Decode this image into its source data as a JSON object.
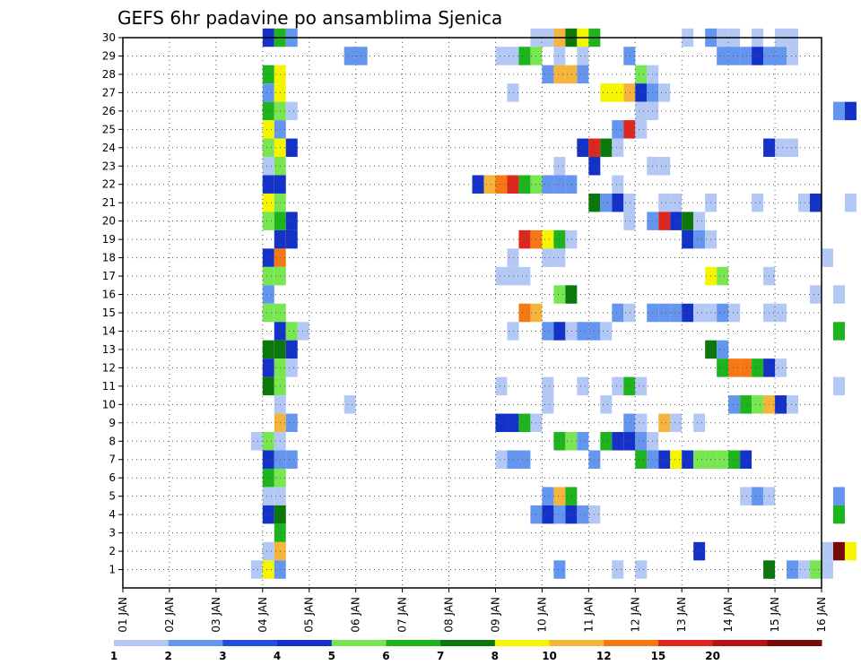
{
  "chart_data": {
    "type": "heatmap",
    "title": "GEFS 6hr padavine po ansamblima Sjenica",
    "x_tick_labels": [
      "01 JAN",
      "02 JAN",
      "03 JAN",
      "04 JAN",
      "05 JAN",
      "06 JAN",
      "07 JAN",
      "08 JAN",
      "09 JAN",
      "10 JAN",
      "11 JAN",
      "12 JAN",
      "13 JAN",
      "14 JAN",
      "15 JAN",
      "16 JAN"
    ],
    "y_tick_labels": [
      "1",
      "2",
      "3",
      "4",
      "5",
      "6",
      "7",
      "8",
      "9",
      "10",
      "11",
      "12",
      "13",
      "14",
      "15",
      "16",
      "17",
      "18",
      "19",
      "20",
      "21",
      "22",
      "23",
      "24",
      "25",
      "26",
      "27",
      "28",
      "29",
      "30"
    ],
    "ylim": [
      0,
      30
    ],
    "xlim_days": [
      1,
      16
    ],
    "grid": true,
    "colorbar": {
      "levels": [
        "1",
        "2",
        "3",
        "4",
        "5",
        "6",
        "7",
        "8",
        "10",
        "12",
        "15",
        "20"
      ],
      "colors": [
        "#b4c8f5",
        "#6496f0",
        "#1e50dc",
        "#1432c8",
        "#78e650",
        "#1eb41e",
        "#0a780a",
        "#f5f500",
        "#f5b43c",
        "#f57814",
        "#dc281e",
        "#b41414",
        "#780a0a"
      ]
    },
    "note_cells_format": "[member_row, start_day_fraction, category_index]",
    "cells": [
      [
        30,
        4.0,
        3
      ],
      [
        30,
        4.25,
        5
      ],
      [
        30,
        4.5,
        1
      ],
      [
        30,
        9.75,
        0
      ],
      [
        30,
        10.0,
        0
      ],
      [
        30,
        10.25,
        8
      ],
      [
        30,
        10.5,
        6
      ],
      [
        30,
        10.75,
        7
      ],
      [
        30,
        11.0,
        5
      ],
      [
        30,
        13.0,
        0
      ],
      [
        30,
        13.5,
        1
      ],
      [
        30,
        13.75,
        0
      ],
      [
        30,
        14.0,
        0
      ],
      [
        30,
        14.5,
        0
      ],
      [
        30,
        15.0,
        0
      ],
      [
        30,
        15.25,
        0
      ],
      [
        29,
        5.75,
        1
      ],
      [
        29,
        6.0,
        1
      ],
      [
        29,
        9.0,
        0
      ],
      [
        29,
        9.25,
        0
      ],
      [
        29,
        9.5,
        5
      ],
      [
        29,
        9.75,
        4
      ],
      [
        29,
        10.25,
        0
      ],
      [
        29,
        10.75,
        0
      ],
      [
        29,
        11.75,
        1
      ],
      [
        29,
        13.75,
        1
      ],
      [
        29,
        14.0,
        1
      ],
      [
        29,
        14.25,
        1
      ],
      [
        29,
        14.5,
        3
      ],
      [
        29,
        14.75,
        1
      ],
      [
        29,
        15.0,
        1
      ],
      [
        29,
        15.25,
        0
      ],
      [
        28,
        4.0,
        5
      ],
      [
        28,
        4.25,
        7
      ],
      [
        28,
        10.0,
        1
      ],
      [
        28,
        10.25,
        8
      ],
      [
        28,
        10.5,
        8
      ],
      [
        28,
        10.75,
        1
      ],
      [
        28,
        12.0,
        4
      ],
      [
        28,
        12.25,
        0
      ],
      [
        27,
        4.0,
        1
      ],
      [
        27,
        4.25,
        7
      ],
      [
        27,
        9.25,
        0
      ],
      [
        27,
        11.25,
        7
      ],
      [
        27,
        11.5,
        7
      ],
      [
        27,
        11.75,
        8
      ],
      [
        27,
        12.0,
        3
      ],
      [
        27,
        12.25,
        1
      ],
      [
        27,
        12.5,
        0
      ],
      [
        26,
        4.0,
        5
      ],
      [
        26,
        4.25,
        4
      ],
      [
        26,
        4.5,
        0
      ],
      [
        26,
        12.0,
        0
      ],
      [
        26,
        12.25,
        0
      ],
      [
        26,
        16.25,
        1
      ],
      [
        26,
        16.5,
        3
      ],
      [
        25,
        4.0,
        7
      ],
      [
        25,
        4.25,
        1
      ],
      [
        25,
        11.5,
        1
      ],
      [
        25,
        11.75,
        10
      ],
      [
        25,
        12.0,
        0
      ],
      [
        24,
        4.0,
        4
      ],
      [
        24,
        4.25,
        7
      ],
      [
        24,
        4.5,
        3
      ],
      [
        24,
        10.75,
        3
      ],
      [
        24,
        11.0,
        10
      ],
      [
        24,
        11.25,
        6
      ],
      [
        24,
        11.5,
        0
      ],
      [
        24,
        14.75,
        3
      ],
      [
        24,
        15.0,
        0
      ],
      [
        24,
        15.25,
        0
      ],
      [
        23,
        4.0,
        0
      ],
      [
        23,
        4.25,
        4
      ],
      [
        23,
        10.25,
        0
      ],
      [
        23,
        11.0,
        3
      ],
      [
        23,
        12.25,
        0
      ],
      [
        23,
        12.5,
        0
      ],
      [
        22,
        4.0,
        3
      ],
      [
        22,
        4.25,
        3
      ],
      [
        22,
        8.5,
        3
      ],
      [
        22,
        8.75,
        8
      ],
      [
        22,
        9.0,
        9
      ],
      [
        22,
        9.25,
        10
      ],
      [
        22,
        9.5,
        5
      ],
      [
        22,
        9.75,
        4
      ],
      [
        22,
        10.0,
        1
      ],
      [
        22,
        10.25,
        1
      ],
      [
        22,
        10.5,
        1
      ],
      [
        22,
        11.5,
        0
      ],
      [
        21,
        4.0,
        7
      ],
      [
        21,
        4.25,
        4
      ],
      [
        21,
        11.0,
        6
      ],
      [
        21,
        11.25,
        1
      ],
      [
        21,
        11.5,
        3
      ],
      [
        21,
        11.75,
        0
      ],
      [
        21,
        12.5,
        0
      ],
      [
        21,
        12.75,
        0
      ],
      [
        21,
        13.5,
        0
      ],
      [
        21,
        14.5,
        0
      ],
      [
        21,
        15.5,
        0
      ],
      [
        21,
        15.75,
        3
      ],
      [
        21,
        16.5,
        0
      ],
      [
        20,
        4.0,
        4
      ],
      [
        20,
        4.25,
        5
      ],
      [
        20,
        4.5,
        3
      ],
      [
        20,
        11.75,
        0
      ],
      [
        20,
        12.25,
        1
      ],
      [
        20,
        12.5,
        10
      ],
      [
        20,
        12.75,
        3
      ],
      [
        20,
        13.0,
        6
      ],
      [
        20,
        13.25,
        0
      ],
      [
        19,
        4.25,
        3
      ],
      [
        19,
        4.5,
        3
      ],
      [
        19,
        9.5,
        10
      ],
      [
        19,
        9.75,
        9
      ],
      [
        19,
        10.0,
        7
      ],
      [
        19,
        10.25,
        5
      ],
      [
        19,
        10.5,
        0
      ],
      [
        19,
        13.0,
        3
      ],
      [
        19,
        13.25,
        1
      ],
      [
        19,
        13.5,
        0
      ],
      [
        18,
        4.0,
        3
      ],
      [
        18,
        4.25,
        9
      ],
      [
        18,
        9.25,
        0
      ],
      [
        18,
        10.0,
        0
      ],
      [
        18,
        10.25,
        0
      ],
      [
        18,
        16.0,
        0
      ],
      [
        17,
        4.0,
        4
      ],
      [
        17,
        4.25,
        4
      ],
      [
        17,
        9.0,
        0
      ],
      [
        17,
        9.25,
        0
      ],
      [
        17,
        9.5,
        0
      ],
      [
        17,
        13.5,
        7
      ],
      [
        17,
        13.75,
        4
      ],
      [
        17,
        14.75,
        0
      ],
      [
        16,
        4.0,
        1
      ],
      [
        16,
        10.25,
        4
      ],
      [
        16,
        10.5,
        6
      ],
      [
        16,
        15.75,
        0
      ],
      [
        16,
        16.25,
        0
      ],
      [
        15,
        4.0,
        4
      ],
      [
        15,
        4.25,
        4
      ],
      [
        15,
        9.5,
        9
      ],
      [
        15,
        9.75,
        8
      ],
      [
        15,
        11.5,
        1
      ],
      [
        15,
        11.75,
        0
      ],
      [
        15,
        12.25,
        1
      ],
      [
        15,
        12.5,
        1
      ],
      [
        15,
        12.75,
        1
      ],
      [
        15,
        13.0,
        3
      ],
      [
        15,
        13.25,
        0
      ],
      [
        15,
        13.5,
        0
      ],
      [
        15,
        13.75,
        1
      ],
      [
        15,
        14.0,
        0
      ],
      [
        15,
        14.75,
        0
      ],
      [
        15,
        15.0,
        0
      ],
      [
        14,
        4.25,
        3
      ],
      [
        14,
        4.5,
        4
      ],
      [
        14,
        4.75,
        0
      ],
      [
        14,
        9.25,
        0
      ],
      [
        14,
        10.0,
        1
      ],
      [
        14,
        10.25,
        3
      ],
      [
        14,
        10.5,
        0
      ],
      [
        14,
        10.75,
        1
      ],
      [
        14,
        11.0,
        1
      ],
      [
        14,
        11.25,
        0
      ],
      [
        14,
        16.25,
        5
      ],
      [
        13,
        4.0,
        6
      ],
      [
        13,
        4.25,
        6
      ],
      [
        13,
        4.5,
        3
      ],
      [
        13,
        13.5,
        6
      ],
      [
        13,
        13.75,
        1
      ],
      [
        12,
        4.0,
        3
      ],
      [
        12,
        4.25,
        4
      ],
      [
        12,
        4.5,
        0
      ],
      [
        12,
        13.75,
        5
      ],
      [
        12,
        14.0,
        9
      ],
      [
        12,
        14.25,
        9
      ],
      [
        12,
        14.5,
        5
      ],
      [
        12,
        14.75,
        3
      ],
      [
        12,
        15.0,
        0
      ],
      [
        11,
        4.0,
        6
      ],
      [
        11,
        4.25,
        4
      ],
      [
        11,
        9.0,
        0
      ],
      [
        11,
        10.0,
        0
      ],
      [
        11,
        10.75,
        0
      ],
      [
        11,
        11.5,
        0
      ],
      [
        11,
        11.75,
        5
      ],
      [
        11,
        12.0,
        0
      ],
      [
        11,
        16.25,
        0
      ],
      [
        10,
        4.25,
        0
      ],
      [
        10,
        5.75,
        0
      ],
      [
        10,
        10.0,
        0
      ],
      [
        10,
        11.25,
        0
      ],
      [
        10,
        14.0,
        1
      ],
      [
        10,
        14.25,
        5
      ],
      [
        10,
        14.5,
        4
      ],
      [
        10,
        14.75,
        8
      ],
      [
        10,
        15.0,
        3
      ],
      [
        10,
        15.25,
        0
      ],
      [
        9,
        4.25,
        8
      ],
      [
        9,
        4.5,
        1
      ],
      [
        9,
        9.0,
        3
      ],
      [
        9,
        9.25,
        3
      ],
      [
        9,
        9.5,
        5
      ],
      [
        9,
        9.75,
        0
      ],
      [
        9,
        11.75,
        1
      ],
      [
        9,
        12.0,
        0
      ],
      [
        9,
        12.5,
        8
      ],
      [
        9,
        12.75,
        0
      ],
      [
        9,
        13.25,
        0
      ],
      [
        8,
        3.75,
        0
      ],
      [
        8,
        4.0,
        4
      ],
      [
        8,
        4.25,
        0
      ],
      [
        8,
        10.25,
        5
      ],
      [
        8,
        10.5,
        4
      ],
      [
        8,
        10.75,
        1
      ],
      [
        8,
        11.25,
        5
      ],
      [
        8,
        11.5,
        3
      ],
      [
        8,
        11.75,
        3
      ],
      [
        8,
        12.0,
        1
      ],
      [
        8,
        12.25,
        0
      ],
      [
        7,
        4.0,
        3
      ],
      [
        7,
        4.25,
        1
      ],
      [
        7,
        4.5,
        1
      ],
      [
        7,
        9.0,
        0
      ],
      [
        7,
        9.25,
        1
      ],
      [
        7,
        9.5,
        1
      ],
      [
        7,
        11.0,
        1
      ],
      [
        7,
        12.0,
        5
      ],
      [
        7,
        12.25,
        1
      ],
      [
        7,
        12.5,
        3
      ],
      [
        7,
        12.75,
        7
      ],
      [
        7,
        13.0,
        3
      ],
      [
        7,
        13.25,
        4
      ],
      [
        7,
        13.5,
        4
      ],
      [
        7,
        13.75,
        4
      ],
      [
        7,
        14.0,
        5
      ],
      [
        7,
        14.25,
        3
      ],
      [
        6,
        4.0,
        5
      ],
      [
        6,
        4.25,
        4
      ],
      [
        5,
        4.0,
        0
      ],
      [
        5,
        4.25,
        0
      ],
      [
        5,
        10.0,
        1
      ],
      [
        5,
        10.25,
        8
      ],
      [
        5,
        10.5,
        5
      ],
      [
        5,
        14.25,
        0
      ],
      [
        5,
        14.5,
        1
      ],
      [
        5,
        14.75,
        0
      ],
      [
        5,
        16.25,
        1
      ],
      [
        4,
        4.0,
        3
      ],
      [
        4,
        4.25,
        6
      ],
      [
        4,
        9.75,
        1
      ],
      [
        4,
        10.0,
        3
      ],
      [
        4,
        10.25,
        1
      ],
      [
        4,
        10.5,
        3
      ],
      [
        4,
        10.75,
        1
      ],
      [
        4,
        11.0,
        0
      ],
      [
        4,
        16.25,
        5
      ],
      [
        3,
        4.25,
        5
      ],
      [
        2,
        4.0,
        0
      ],
      [
        2,
        4.25,
        8
      ],
      [
        2,
        13.25,
        3
      ],
      [
        2,
        16.25,
        12
      ],
      [
        2,
        16.5,
        7
      ],
      [
        2,
        16.0,
        0
      ],
      [
        1,
        3.75,
        0
      ],
      [
        1,
        4.0,
        7
      ],
      [
        1,
        4.25,
        1
      ],
      [
        1,
        10.25,
        1
      ],
      [
        1,
        11.5,
        0
      ],
      [
        1,
        12.0,
        0
      ],
      [
        1,
        14.75,
        6
      ],
      [
        1,
        15.25,
        1
      ],
      [
        1,
        15.5,
        0
      ],
      [
        1,
        15.75,
        4
      ],
      [
        1,
        16.0,
        0
      ]
    ]
  }
}
